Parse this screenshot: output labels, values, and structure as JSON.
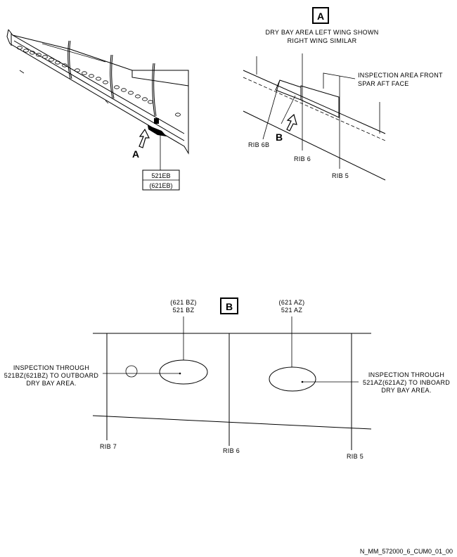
{
  "overview": {
    "view_label": "A",
    "panel_top": "521EB",
    "panel_bottom": "(621EB)"
  },
  "view_a": {
    "title": "A",
    "note_line1": "DRY BAY AREA LEFT WING SHOWN",
    "note_line2": "RIGHT WING SIMILAR",
    "inspection_line1": "INSPECTION AREA FRONT",
    "inspection_line2": "SPAR AFT FACE",
    "rib_6b": "RIB 6B",
    "rib_6": "RIB 6",
    "rib_5": "RIB 5",
    "view_b_label": "B"
  },
  "view_b": {
    "title": "B",
    "bz_top": "(621 BZ)",
    "bz_bottom": "521 BZ",
    "az_top": "(621 AZ)",
    "az_bottom": "521 AZ",
    "left_note_1": "INSPECTION THROUGH",
    "left_note_2": "521BZ(621BZ) TO OUTBOARD",
    "left_note_3": "DRY BAY AREA.",
    "right_note_1": "INSPECTION THROUGH",
    "right_note_2": "521AZ(621AZ) TO INBOARD",
    "right_note_3": "DRY BAY AREA.",
    "rib_7": "RIB 7",
    "rib_6": "RIB 6",
    "rib_5": "RIB 5"
  },
  "footer": "N_MM_572000_6_CUM0_01_00"
}
